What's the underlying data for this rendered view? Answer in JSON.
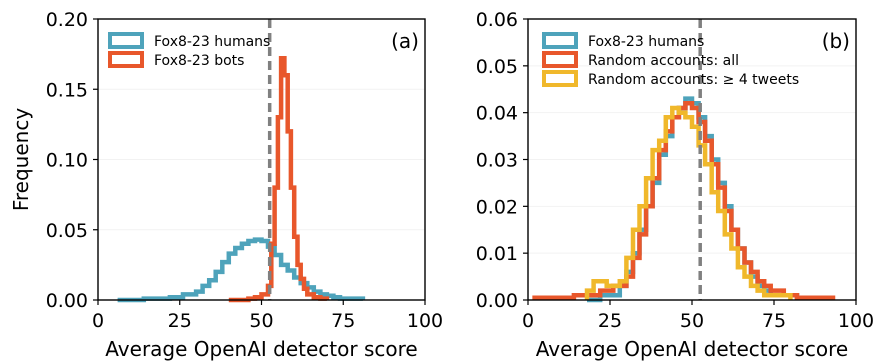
{
  "chart_data": [
    {
      "type": "histogram-step",
      "panel_label": "(a)",
      "xlabel": "Average OpenAI detector score",
      "ylabel": "Frequency",
      "xlim": [
        0,
        100
      ],
      "ylim": [
        0,
        0.2
      ],
      "xticks": [
        0,
        25,
        50,
        75,
        100
      ],
      "yticks": [
        0.0,
        0.05,
        0.1,
        0.15,
        0.2
      ],
      "ytick_labels": [
        "0.00",
        "0.05",
        "0.10",
        "0.15",
        "0.20"
      ],
      "vline": 52.5,
      "legend_position": "top-left",
      "series": [
        {
          "name": "Fox8-23 humans",
          "color": "#4ea3bb",
          "x": [
            6,
            10,
            14,
            18,
            22,
            26,
            30,
            32,
            34,
            36,
            38,
            40,
            42,
            44,
            46,
            48,
            50,
            52,
            54,
            56,
            58,
            60,
            62,
            64,
            66,
            68,
            70,
            72,
            74,
            76,
            78,
            81
          ],
          "y": [
            0,
            0,
            0.001,
            0.001,
            0.002,
            0.004,
            0.006,
            0.01,
            0.014,
            0.02,
            0.027,
            0.033,
            0.037,
            0.04,
            0.042,
            0.043,
            0.042,
            0.038,
            0.032,
            0.025,
            0.021,
            0.016,
            0.012,
            0.009,
            0.006,
            0.004,
            0.003,
            0.002,
            0.001,
            0.001,
            0.001,
            0
          ]
        },
        {
          "name": "Fox8-23 bots",
          "color": "#e8572b",
          "x": [
            40,
            44,
            46,
            48,
            50,
            52,
            53,
            54,
            55,
            56,
            57,
            58,
            59,
            60,
            61,
            62,
            63,
            64,
            66,
            68,
            70
          ],
          "y": [
            0,
            0,
            0.001,
            0.002,
            0.004,
            0.01,
            0.04,
            0.08,
            0.13,
            0.172,
            0.16,
            0.12,
            0.08,
            0.045,
            0.025,
            0.015,
            0.008,
            0.004,
            0.002,
            0.001,
            0
          ]
        }
      ]
    },
    {
      "type": "histogram-step",
      "panel_label": "(b)",
      "xlabel": "Average OpenAI detector score",
      "ylabel": "",
      "xlim": [
        0,
        100
      ],
      "ylim": [
        0,
        0.06
      ],
      "xticks": [
        0,
        25,
        50,
        75,
        100
      ],
      "yticks": [
        0.0,
        0.01,
        0.02,
        0.03,
        0.04,
        0.05,
        0.06
      ],
      "ytick_labels": [
        "0.00",
        "0.01",
        "0.02",
        "0.03",
        "0.04",
        "0.05",
        "0.06"
      ],
      "vline": 52.5,
      "legend_position": "top-left",
      "series": [
        {
          "name": "Fox8-23 humans",
          "color": "#4ea3bb",
          "x": [
            18,
            22,
            25,
            28,
            30,
            32,
            34,
            36,
            38,
            40,
            42,
            44,
            46,
            48,
            50,
            52,
            54,
            56,
            58,
            60,
            62,
            64,
            66,
            68,
            70,
            72,
            74,
            76,
            78,
            80,
            82
          ],
          "y": [
            0,
            0.001,
            0.001,
            0.003,
            0.006,
            0.01,
            0.015,
            0.02,
            0.025,
            0.031,
            0.035,
            0.039,
            0.041,
            0.043,
            0.042,
            0.039,
            0.035,
            0.03,
            0.025,
            0.02,
            0.015,
            0.011,
            0.008,
            0.005,
            0.003,
            0.002,
            0.001,
            0.001,
            0.001,
            0.001,
            0
          ]
        },
        {
          "name": "Random accounts: all",
          "color": "#e8572b",
          "x": [
            2,
            8,
            14,
            18,
            22,
            26,
            30,
            32,
            34,
            36,
            38,
            40,
            42,
            44,
            46,
            48,
            50,
            52,
            54,
            56,
            58,
            60,
            62,
            64,
            66,
            68,
            70,
            72,
            74,
            76,
            78,
            80,
            82,
            86,
            90,
            93
          ],
          "y": [
            0.0005,
            0.0005,
            0.001,
            0.001,
            0.002,
            0.003,
            0.005,
            0.009,
            0.014,
            0.02,
            0.026,
            0.032,
            0.036,
            0.039,
            0.041,
            0.042,
            0.041,
            0.038,
            0.034,
            0.029,
            0.024,
            0.019,
            0.015,
            0.011,
            0.008,
            0.006,
            0.004,
            0.003,
            0.002,
            0.002,
            0.001,
            0.001,
            0.0005,
            0.0005,
            0.0005,
            0
          ]
        },
        {
          "name": "Random accounts: ≥ 4 tweets",
          "color": "#f0b82b",
          "x": [
            18,
            20,
            24,
            28,
            30,
            32,
            34,
            36,
            38,
            40,
            42,
            44,
            46,
            48,
            50,
            52,
            54,
            56,
            58,
            60,
            62,
            64,
            66,
            68,
            70,
            72,
            74,
            76,
            78,
            80
          ],
          "y": [
            0.002,
            0.004,
            0.003,
            0.004,
            0.009,
            0.015,
            0.02,
            0.026,
            0.032,
            0.034,
            0.039,
            0.041,
            0.04,
            0.039,
            0.037,
            0.033,
            0.029,
            0.023,
            0.019,
            0.014,
            0.011,
            0.007,
            0.005,
            0.003,
            0.002,
            0.001,
            0.001,
            0.001,
            0.001,
            0
          ]
        }
      ]
    }
  ]
}
